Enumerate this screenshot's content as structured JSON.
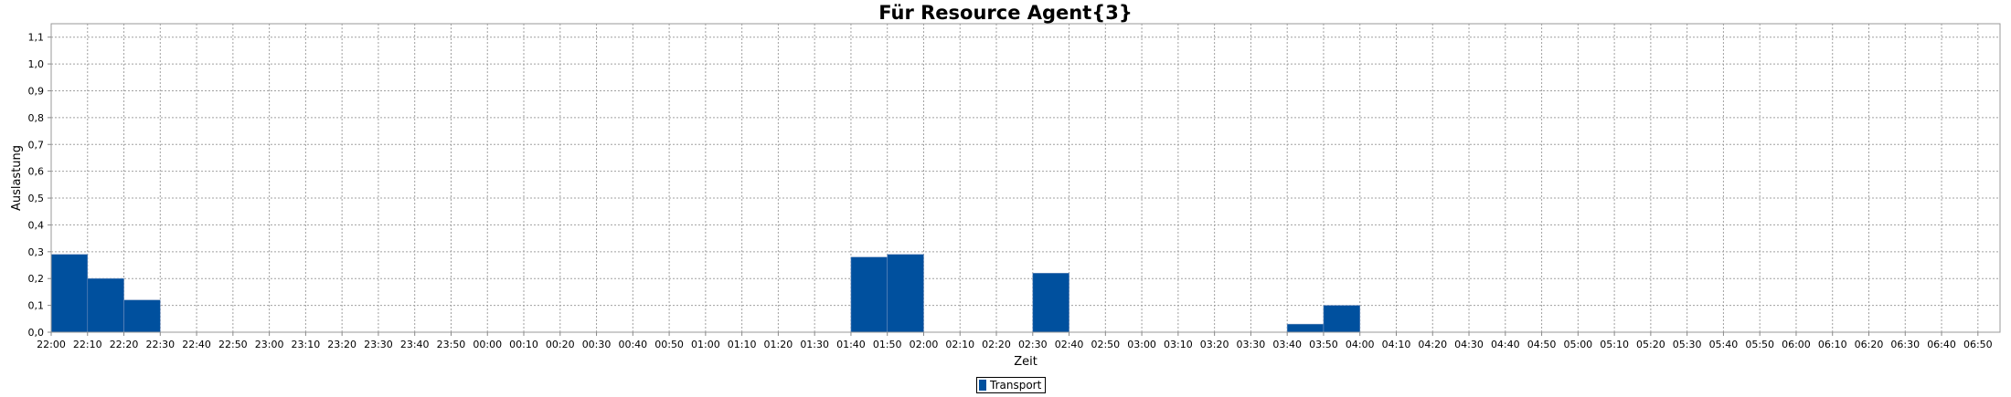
{
  "chart_data": {
    "type": "bar",
    "title": "Für Resource Agent{3}",
    "xlabel": "Zeit",
    "ylabel": "Auslastung",
    "ylim": [
      0,
      1.15
    ],
    "yticks": [
      "0,0",
      "0,1",
      "0,2",
      "0,3",
      "0,4",
      "0,5",
      "0,6",
      "0,7",
      "0,8",
      "0,9",
      "1,0",
      "1,1"
    ],
    "xticks": [
      "22:00",
      "22:10",
      "22:20",
      "22:30",
      "22:40",
      "22:50",
      "23:00",
      "23:10",
      "23:20",
      "23:30",
      "23:40",
      "23:50",
      "00:00",
      "00:10",
      "00:20",
      "00:30",
      "00:40",
      "00:50",
      "01:00",
      "01:10",
      "01:20",
      "01:30",
      "01:40",
      "01:50",
      "02:00",
      "02:10",
      "02:20",
      "02:30",
      "02:40",
      "02:50",
      "03:00",
      "03:10",
      "03:20",
      "03:30",
      "03:40",
      "03:50",
      "04:00",
      "04:10",
      "04:20",
      "04:30",
      "04:40",
      "04:50",
      "05:00",
      "05:10",
      "05:20",
      "05:30",
      "05:40",
      "05:50",
      "06:00",
      "06:10",
      "06:20",
      "06:30",
      "06:40",
      "06:50"
    ],
    "grid": true,
    "legend_position": "bottom",
    "series": [
      {
        "name": "Transport",
        "color": "#00509e",
        "bars": [
          {
            "start": "22:00",
            "end": "22:10",
            "value": 0.29
          },
          {
            "start": "22:10",
            "end": "22:20",
            "value": 0.2
          },
          {
            "start": "22:20",
            "end": "22:30",
            "value": 0.12
          },
          {
            "start": "01:40",
            "end": "01:50",
            "value": 0.28
          },
          {
            "start": "01:50",
            "end": "02:00",
            "value": 0.29
          },
          {
            "start": "02:30",
            "end": "02:40",
            "value": 0.22
          },
          {
            "start": "03:40",
            "end": "03:50",
            "value": 0.03
          },
          {
            "start": "03:50",
            "end": "04:00",
            "value": 0.1
          }
        ]
      }
    ]
  }
}
